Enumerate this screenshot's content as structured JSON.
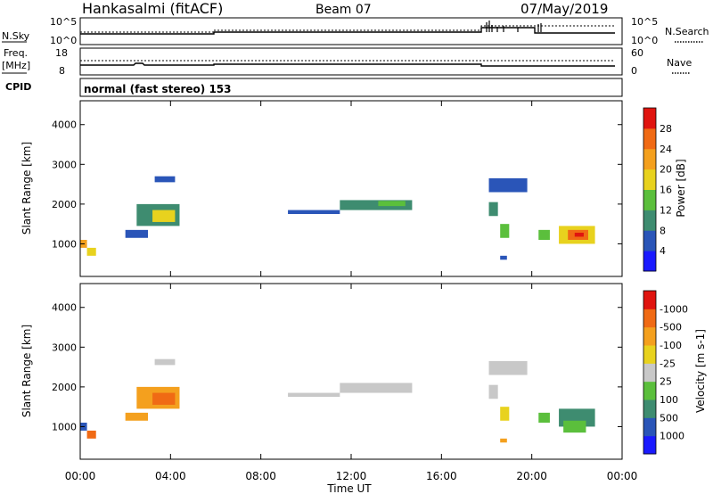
{
  "header": {
    "station": "Hankasalmi (fitACF)",
    "beam": "Beam 07",
    "date": "07/May/2019"
  },
  "noise_panel": {
    "left_label": "N.Sky",
    "left_top_tick": "10^5",
    "left_bottom_tick": "10^0",
    "right_top_tick": "10^5",
    "right_bottom_tick": "10^0",
    "right_label": "N.Search"
  },
  "freq_panel": {
    "left_label_1": "Freq.",
    "left_label_2": "[MHz]",
    "left_top_tick": "18",
    "left_bottom_tick": "8",
    "right_top_tick": "60",
    "right_bottom_tick": "0",
    "right_label": "Nave"
  },
  "cpid_panel": {
    "label": "CPID",
    "value": "normal (fast stereo) 153"
  },
  "chart_data": [
    {
      "type": "heatmap",
      "title": "",
      "ylabel": "Slant Range [km]",
      "xlabel": "",
      "ylim": [
        180,
        4600
      ],
      "y_ticks": [
        "1000",
        "2000",
        "3000",
        "4000"
      ],
      "colorbar": {
        "label": "Power [dB]",
        "ticks": [
          "4",
          "8",
          "12",
          "16",
          "20",
          "24",
          "28"
        ],
        "colors": [
          "#1a1aff",
          "#2a55b8",
          "#3e8c70",
          "#5bbf3c",
          "#e8d21e",
          "#f4a01e",
          "#f06a14",
          "#e0140f"
        ]
      },
      "regions": [
        {
          "t0": 0.0,
          "t1": 0.3,
          "r0": 900,
          "r1": 1100,
          "level": 5
        },
        {
          "t0": 0.3,
          "t1": 0.7,
          "r0": 700,
          "r1": 900,
          "level": 4
        },
        {
          "t0": 2.0,
          "t1": 3.0,
          "r0": 1150,
          "r1": 1350,
          "level": 1
        },
        {
          "t0": 2.5,
          "t1": 4.4,
          "r0": 1450,
          "r1": 2000,
          "level": 2
        },
        {
          "t0": 3.2,
          "t1": 4.2,
          "r0": 1550,
          "r1": 1850,
          "level": 4
        },
        {
          "t0": 3.3,
          "t1": 4.2,
          "r0": 2550,
          "r1": 2700,
          "level": 1
        },
        {
          "t0": 9.2,
          "t1": 11.5,
          "r0": 1750,
          "r1": 1850,
          "level": 1
        },
        {
          "t0": 11.5,
          "t1": 14.7,
          "r0": 1850,
          "r1": 2100,
          "level": 2
        },
        {
          "t0": 13.2,
          "t1": 14.4,
          "r0": 1950,
          "r1": 2080,
          "level": 3
        },
        {
          "t0": 18.1,
          "t1": 19.8,
          "r0": 2300,
          "r1": 2650,
          "level": 1
        },
        {
          "t0": 18.1,
          "t1": 18.5,
          "r0": 1700,
          "r1": 2050,
          "level": 2
        },
        {
          "t0": 18.6,
          "t1": 19.0,
          "r0": 1150,
          "r1": 1500,
          "level": 3
        },
        {
          "t0": 18.6,
          "t1": 18.9,
          "r0": 600,
          "r1": 700,
          "level": 1
        },
        {
          "t0": 20.3,
          "t1": 20.8,
          "r0": 1100,
          "r1": 1350,
          "level": 3
        },
        {
          "t0": 21.2,
          "t1": 22.8,
          "r0": 1000,
          "r1": 1450,
          "level": 4
        },
        {
          "t0": 21.6,
          "t1": 22.5,
          "r0": 1100,
          "r1": 1350,
          "level": 6
        },
        {
          "t0": 21.9,
          "t1": 22.3,
          "r0": 1180,
          "r1": 1280,
          "level": 7
        }
      ]
    },
    {
      "type": "heatmap",
      "title": "",
      "ylabel": "Slant Range [km]",
      "xlabel": "Time UT",
      "ylim": [
        180,
        4600
      ],
      "y_ticks": [
        "1000",
        "2000",
        "3000",
        "4000"
      ],
      "x_ticks": [
        "00:00",
        "04:00",
        "08:00",
        "12:00",
        "16:00",
        "20:00",
        "00:00"
      ],
      "colorbar": {
        "label": "Velocity [m s-1]",
        "ticks": [
          "1000",
          "500",
          "100",
          "25",
          "-25",
          "-100",
          "-500",
          "-1000"
        ],
        "colors": [
          "#1a1aff",
          "#2a55b8",
          "#3e8c70",
          "#5bbf3c",
          "#c8c8c8",
          "#e8d21e",
          "#f4a01e",
          "#f06a14",
          "#e0140f"
        ]
      },
      "regions": [
        {
          "t0": 0.0,
          "t1": 0.3,
          "r0": 900,
          "r1": 1100,
          "level": 1
        },
        {
          "t0": 0.3,
          "t1": 0.7,
          "r0": 700,
          "r1": 900,
          "level": 7
        },
        {
          "t0": 2.0,
          "t1": 3.0,
          "r0": 1150,
          "r1": 1350,
          "level": 6
        },
        {
          "t0": 2.5,
          "t1": 4.4,
          "r0": 1450,
          "r1": 2000,
          "level": 6
        },
        {
          "t0": 3.2,
          "t1": 4.2,
          "r0": 1550,
          "r1": 1850,
          "level": 7
        },
        {
          "t0": 3.3,
          "t1": 4.2,
          "r0": 2550,
          "r1": 2700,
          "level": 4
        },
        {
          "t0": 9.2,
          "t1": 11.5,
          "r0": 1750,
          "r1": 1850,
          "level": 4
        },
        {
          "t0": 11.5,
          "t1": 14.7,
          "r0": 1850,
          "r1": 2100,
          "level": 4
        },
        {
          "t0": 18.1,
          "t1": 19.8,
          "r0": 2300,
          "r1": 2650,
          "level": 4
        },
        {
          "t0": 18.1,
          "t1": 18.5,
          "r0": 1700,
          "r1": 2050,
          "level": 4
        },
        {
          "t0": 18.6,
          "t1": 19.0,
          "r0": 1150,
          "r1": 1500,
          "level": 5
        },
        {
          "t0": 18.6,
          "t1": 18.9,
          "r0": 600,
          "r1": 700,
          "level": 6
        },
        {
          "t0": 20.3,
          "t1": 20.8,
          "r0": 1100,
          "r1": 1350,
          "level": 3
        },
        {
          "t0": 21.2,
          "t1": 22.8,
          "r0": 1000,
          "r1": 1450,
          "level": 2
        },
        {
          "t0": 21.4,
          "t1": 22.4,
          "r0": 850,
          "r1": 1150,
          "level": 3
        }
      ]
    }
  ]
}
